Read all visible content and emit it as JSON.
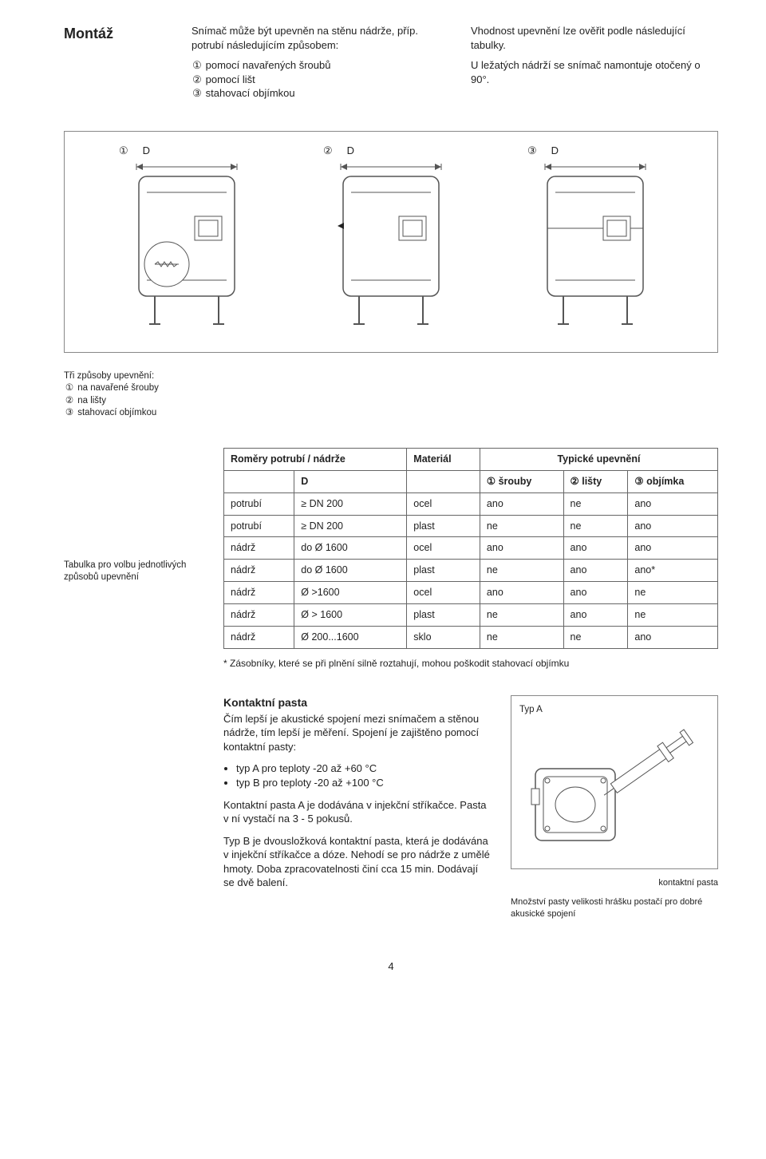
{
  "heading": "Montáž",
  "intro_col1": {
    "p1": "Snímač může být upevněn na stěnu nádrže, příp. potrubí následujícím způsobem:",
    "items": [
      "pomocí navařených šroubů",
      "pomocí lišt",
      "stahovací objímkou"
    ],
    "circled": [
      "①",
      "②",
      "③"
    ]
  },
  "intro_col2": {
    "p1": "Vhodnost upevnění lze ověřit podle následující tabulky.",
    "p2": "U ležatých nádrží se snímač namontuje otočený o 90°."
  },
  "diagram": {
    "labels": [
      "①",
      "②",
      "③"
    ],
    "d": "D",
    "tank_fill": "#ffffff",
    "stroke": "#555555"
  },
  "methods_caption": {
    "title": "Tři způsoby upevnění:",
    "items": [
      "na navařené šrouby",
      "na lišty",
      "stahovací objímkou"
    ],
    "circled": [
      "①",
      "②",
      "③"
    ]
  },
  "table_caption": "Tabulka pro volbu jednotlivých způsobů upevnění",
  "spec_table": {
    "headers": {
      "dim": "Roměry potrubí / nádrže",
      "mat": "Materiál",
      "typ": "Typické upevnění"
    },
    "subheaders": [
      "D",
      "① šrouby",
      "② lišty",
      "③ objímka"
    ],
    "rows": [
      [
        "potrubí",
        "≥ DN 200",
        "ocel",
        "ano",
        "ne",
        "ano"
      ],
      [
        "potrubí",
        "≥ DN 200",
        "plast",
        "ne",
        "ne",
        "ano"
      ],
      [
        "nádrž",
        "do Ø 1600",
        "ocel",
        "ano",
        "ano",
        "ano"
      ],
      [
        "nádrž",
        "do Ø 1600",
        "plast",
        "ne",
        "ano",
        "ano*"
      ],
      [
        "nádrž",
        "Ø >1600",
        "ocel",
        "ano",
        "ano",
        "ne"
      ],
      [
        "nádrž",
        "Ø > 1600",
        "plast",
        "ne",
        "ano",
        "ne"
      ],
      [
        "nádrž",
        "Ø 200...1600",
        "sklo",
        "ne",
        "ne",
        "ano"
      ]
    ]
  },
  "note": "* Zásobníky, které se při plnění silně roztahují, mohou poškodit stahovací objímku",
  "kontakt": {
    "title": "Kontaktní pasta",
    "p1": "Čím lepší je akustické spojení mezi snímačem a stěnou nádrže, tím lepší je měření. Spojení je zajištěno pomocí kontaktní pasty:",
    "bullets": [
      "typ A pro teploty -20 až +60 °C",
      "typ B pro teploty -20 až +100 °C"
    ],
    "p2": "Kontaktní pasta A je dodávána v injekční stříkačce. Pasta v ní vystačí na 3 - 5 pokusů.",
    "p3": "Typ B je dvousložková kontaktní pasta, která je dodávána v injekční stříkačce a dóze. Nehodí se pro nádrže z umělé hmoty. Doba zpracovatelnosti činí cca 15 min. Dodávají se dvě balení."
  },
  "syringe": {
    "typa": "Typ A",
    "cap1": "kontaktní pasta",
    "cap2": "Množství pasty velikosti hrášku postačí pro dobré akusické spojení"
  },
  "page_num": "4"
}
